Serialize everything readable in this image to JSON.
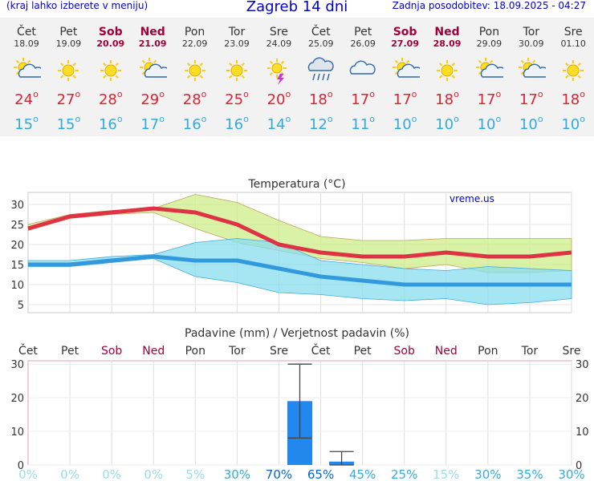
{
  "header": {
    "menu_hint": "(kraj lahko izberete v meniju)",
    "title": "Zagreb 14 dni",
    "last_update": "Zadnja posodobitev: 18.09.2025 - 04:27"
  },
  "days": [
    {
      "name": "Čet",
      "date": "18.09",
      "weekend": false,
      "icon": "sun-cloud-icon",
      "tmax": "24",
      "tmin": "15"
    },
    {
      "name": "Pet",
      "date": "19.09",
      "weekend": false,
      "icon": "sun-icon",
      "tmax": "27",
      "tmin": "15"
    },
    {
      "name": "Sob",
      "date": "20.09",
      "weekend": true,
      "icon": "sun-icon",
      "tmax": "28",
      "tmin": "16"
    },
    {
      "name": "Ned",
      "date": "21.09",
      "weekend": true,
      "icon": "sun-cloud-icon",
      "tmax": "29",
      "tmin": "17"
    },
    {
      "name": "Pon",
      "date": "22.09",
      "weekend": false,
      "icon": "sun-icon",
      "tmax": "28",
      "tmin": "16"
    },
    {
      "name": "Tor",
      "date": "23.09",
      "weekend": false,
      "icon": "sun-icon",
      "tmax": "25",
      "tmin": "16"
    },
    {
      "name": "Sre",
      "date": "24.09",
      "weekend": false,
      "icon": "sun-storm-icon",
      "tmax": "20",
      "tmin": "14"
    },
    {
      "name": "Čet",
      "date": "25.09",
      "weekend": false,
      "icon": "rain-cloud-icon",
      "tmax": "18",
      "tmin": "12"
    },
    {
      "name": "Pet",
      "date": "26.09",
      "weekend": false,
      "icon": "cloud-icon",
      "tmax": "17",
      "tmin": "11"
    },
    {
      "name": "Sob",
      "date": "27.09",
      "weekend": true,
      "icon": "sun-cloud-icon",
      "tmax": "17",
      "tmin": "10"
    },
    {
      "name": "Ned",
      "date": "28.09",
      "weekend": true,
      "icon": "sun-icon",
      "tmax": "18",
      "tmin": "10"
    },
    {
      "name": "Pon",
      "date": "29.09",
      "weekend": false,
      "icon": "sun-cloud-icon",
      "tmax": "17",
      "tmin": "10"
    },
    {
      "name": "Tor",
      "date": "30.09",
      "weekend": false,
      "icon": "sun-cloud-icon",
      "tmax": "17",
      "tmin": "10"
    },
    {
      "name": "Sre",
      "date": "01.10",
      "weekend": false,
      "icon": "sun-icon",
      "tmax": "18",
      "tmin": "10"
    }
  ],
  "colors": {
    "max_line": "#dd3344",
    "min_line": "#3399dd",
    "max_band": "#ccee88",
    "min_band": "#88ddee",
    "bar": "#2288ee",
    "weekend": "#a0003c",
    "prob_low": "#99ddee",
    "prob_mid": "#33aadd",
    "prob_high": "#0066cc"
  },
  "chart_data": [
    {
      "type": "line",
      "title": "Temperatura (°C)",
      "watermark": "vreme.us",
      "x": [
        "Čet",
        "Pet",
        "Sob",
        "Ned",
        "Pon",
        "Tor",
        "Sre",
        "Čet",
        "Pet",
        "Sob",
        "Ned",
        "Pon",
        "Tor",
        "Sre"
      ],
      "ylim": [
        3,
        33
      ],
      "yticks": [
        5,
        10,
        15,
        20,
        25,
        30
      ],
      "series": [
        {
          "values": [
            24,
            27,
            28,
            29,
            28,
            25,
            20,
            18,
            17,
            17,
            18,
            17,
            17,
            18
          ]
        },
        {
          "values": [
            15,
            15,
            16,
            17,
            16,
            16,
            14,
            12,
            11,
            10,
            10,
            10,
            10,
            10
          ]
        }
      ],
      "max_band_upper": [
        25,
        27.5,
        28.5,
        29,
        32.5,
        30.5,
        26,
        22,
        21,
        21,
        21.5,
        21.5,
        21.5,
        21.5
      ],
      "max_band_lower": [
        23.5,
        26.5,
        27.5,
        28,
        24,
        20.5,
        18.5,
        16.5,
        15.5,
        14,
        15,
        13,
        13,
        13.5
      ],
      "min_band_upper": [
        16,
        16,
        17,
        17.5,
        20.5,
        21.5,
        20.5,
        16,
        15,
        14,
        13.5,
        14.5,
        14,
        13.5
      ],
      "min_band_lower": [
        14.5,
        14.5,
        15.5,
        16.5,
        12,
        10.5,
        8,
        7.5,
        6.5,
        6,
        6.5,
        5,
        5.5,
        6.5
      ],
      "grid": true
    },
    {
      "type": "bar",
      "title": "Padavine (mm) / Verjetnost padavin (%)",
      "categories": [
        "Čet",
        "Pet",
        "Sob",
        "Ned",
        "Pon",
        "Tor",
        "Sre",
        "Čet",
        "Pet",
        "Sob",
        "Ned",
        "Pon",
        "Tor",
        "Sre"
      ],
      "precip_mm": [
        0,
        0,
        0,
        0,
        0,
        0,
        19,
        1,
        0,
        0,
        0,
        0,
        0,
        0
      ],
      "err_low": [
        null,
        null,
        null,
        null,
        null,
        null,
        8,
        0,
        null,
        null,
        null,
        null,
        null,
        null
      ],
      "err_high": [
        null,
        null,
        null,
        null,
        null,
        null,
        30,
        4,
        null,
        null,
        null,
        null,
        null,
        null
      ],
      "probability": [
        "0%",
        "0%",
        "0%",
        "0%",
        "5%",
        "30%",
        "70%",
        "65%",
        "45%",
        "25%",
        "15%",
        "30%",
        "35%",
        "30%"
      ],
      "ylim": [
        0,
        31
      ],
      "yticks": [
        0,
        10,
        20,
        30
      ],
      "grid": true
    }
  ]
}
